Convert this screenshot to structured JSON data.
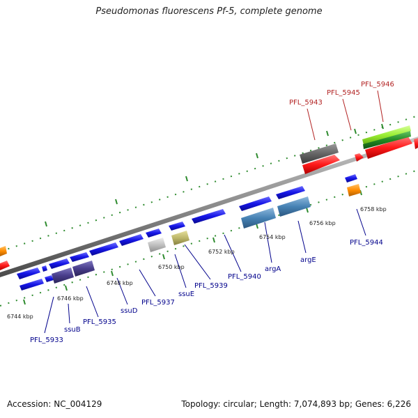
{
  "title": "Pseudomonas fluorescens Pf-5, complete genome",
  "footer": {
    "accession": "Accession: NC_004129",
    "topology": "Topology: circular; Length: 7,074,893 bp; Genes: 6,226"
  },
  "colors": {
    "backbone": "#8a8a8a",
    "tick": "#2e8b2e",
    "blue_gene": "#1515e6",
    "steel_gene": "#4682b4",
    "slate_gene": "#483d8b",
    "gray_gene": "#666666",
    "silver_gene": "#c0c0c0",
    "khaki_gene": "#bdb76b",
    "red_gene": "#ff1a1a",
    "orange_gene": "#ff8c00",
    "lime_gene": "#99ee33",
    "green_gene": "#228b22",
    "label_blue": "#00008b",
    "label_red": "#b22222"
  },
  "kbp_labels": [
    "6744 kbp",
    "6746 kbp",
    "6748 kbp",
    "6750 kbp",
    "6752 kbp",
    "6754 kbp",
    "6756 kbp",
    "6758 kbp"
  ],
  "gene_labels_top": [
    "PFL_5943",
    "PFL_5945",
    "PFL_5946"
  ],
  "gene_labels_bottom": [
    "PFL_5933",
    "ssuB",
    "PFL_5935",
    "ssuD",
    "PFL_5937",
    "ssuE",
    "PFL_5939",
    "PFL_5940",
    "argA",
    "argE",
    "PFL_5944"
  ]
}
